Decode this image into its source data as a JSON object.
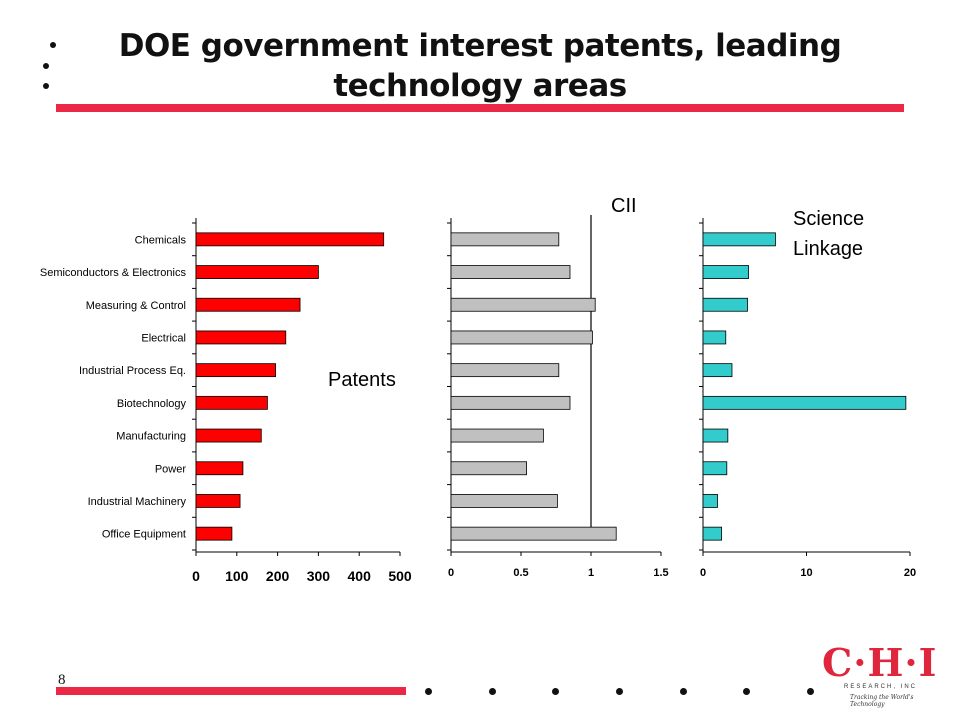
{
  "slide": {
    "title_line1": "DOE government interest patents, leading",
    "title_line2": "technology areas",
    "page_number": "8",
    "logo_main": "C·H·I",
    "logo_sub": "RESEARCH, INC",
    "logo_tag": "Tracking the World's Technology"
  },
  "colors": {
    "accent": "#ec2847",
    "patents_bar": "#ff0000",
    "cii_bar": "#c0c0c0",
    "science_bar": "#33cccc"
  },
  "chart_data": [
    {
      "type": "bar",
      "orientation": "horizontal",
      "title": "Patents",
      "categories": [
        "Chemicals",
        "Semiconductors & Electronics",
        "Measuring & Control",
        "Electrical",
        "Industrial Process Eq.",
        "Biotechnology",
        "Manufacturing",
        "Power",
        "Industrial Machinery",
        "Office Equipment"
      ],
      "values": [
        460,
        300,
        255,
        220,
        195,
        175,
        160,
        115,
        108,
        88
      ],
      "xlim": [
        0,
        500
      ],
      "xticks": [
        "0",
        "100",
        "200",
        "300",
        "400",
        "500"
      ]
    },
    {
      "type": "bar",
      "orientation": "horizontal",
      "title": "CII",
      "categories": [
        "Chemicals",
        "Semiconductors & Electronics",
        "Measuring & Control",
        "Electrical",
        "Industrial Process Eq.",
        "Biotechnology",
        "Manufacturing",
        "Power",
        "Industrial Machinery",
        "Office Equipment"
      ],
      "values": [
        0.77,
        0.85,
        1.03,
        1.01,
        0.77,
        0.85,
        0.66,
        0.54,
        0.76,
        1.18
      ],
      "xlim": [
        0,
        1.5
      ],
      "xticks": [
        "0",
        "0.5",
        "1",
        "1.5"
      ],
      "reference_line": 1
    },
    {
      "type": "bar",
      "orientation": "horizontal",
      "title_lines": [
        "Science",
        "Linkage"
      ],
      "categories": [
        "Chemicals",
        "Semiconductors & Electronics",
        "Measuring & Control",
        "Electrical",
        "Industrial Process Eq.",
        "Biotechnology",
        "Manufacturing",
        "Power",
        "Industrial Machinery",
        "Office Equipment"
      ],
      "values": [
        7.0,
        4.4,
        4.3,
        2.2,
        2.8,
        19.6,
        2.4,
        2.3,
        1.4,
        1.8
      ],
      "xlim": [
        0,
        20
      ],
      "xticks": [
        "0",
        "10",
        "20"
      ]
    }
  ]
}
